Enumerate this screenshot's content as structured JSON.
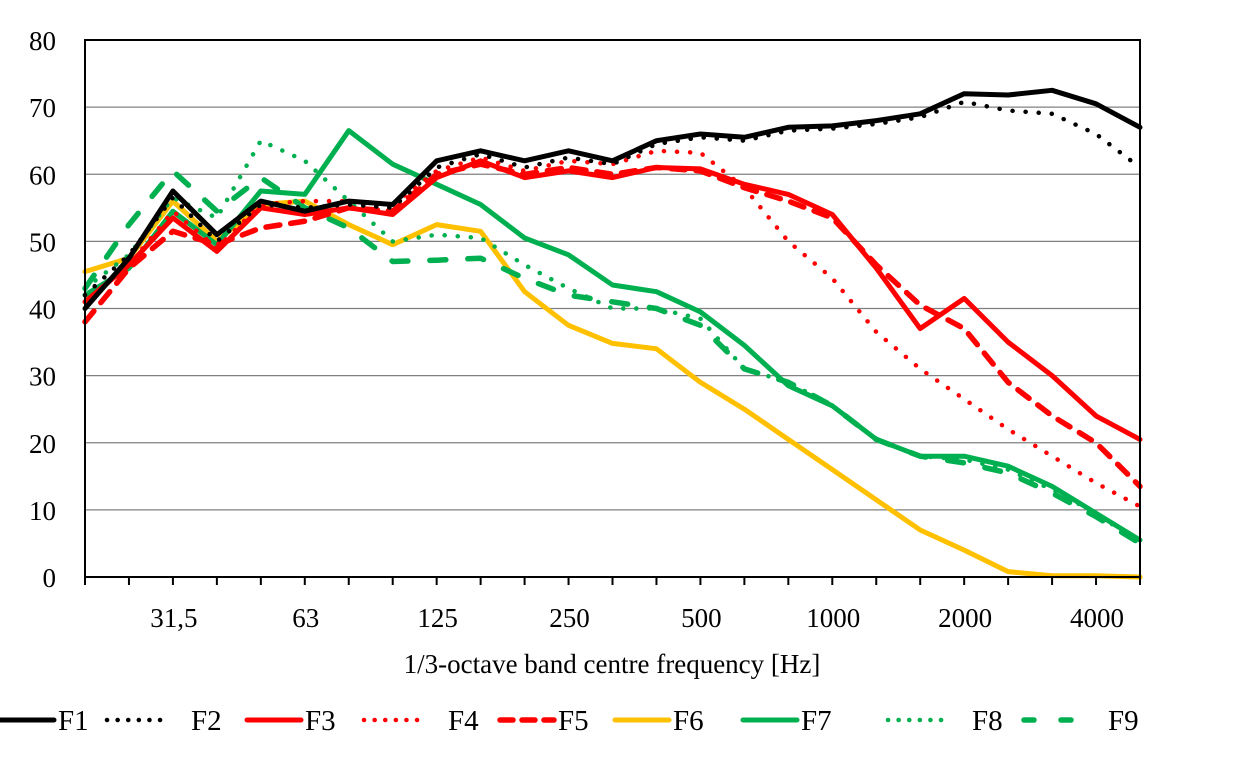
{
  "chart_data": {
    "type": "line",
    "title": "",
    "xlabel": "1/3-octave band centre frequency [Hz]",
    "ylabel": "",
    "ylim": [
      0,
      80
    ],
    "yticks": [
      0,
      10,
      20,
      30,
      40,
      50,
      60,
      70,
      80
    ],
    "ytick_labels": [
      "0",
      "10",
      "20",
      "30",
      "40",
      "50",
      "60",
      "70",
      "80"
    ],
    "grid": "horizontal",
    "legend_position": "bottom",
    "x": [
      "20",
      "25",
      "31,5",
      "40",
      "50",
      "63",
      "80",
      "100",
      "125",
      "160",
      "200",
      "250",
      "315",
      "400",
      "500",
      "630",
      "800",
      "1000",
      "1250",
      "1600",
      "2000",
      "2500",
      "3150",
      "4000",
      "5000"
    ],
    "xtick_labels": [
      {
        "index": 2,
        "label": "31,5"
      },
      {
        "index": 5,
        "label": "63"
      },
      {
        "index": 8,
        "label": "125"
      },
      {
        "index": 11,
        "label": "250"
      },
      {
        "index": 14,
        "label": "500"
      },
      {
        "index": 17,
        "label": "1000"
      },
      {
        "index": 20,
        "label": "2000"
      },
      {
        "index": 23,
        "label": "4000"
      }
    ],
    "series": [
      {
        "name": "F1",
        "color": "#000000",
        "style": "solid",
        "values": [
          40,
          47.5,
          57.5,
          51,
          56,
          54.5,
          56,
          55.5,
          62,
          63.5,
          62,
          63.5,
          62,
          65,
          66,
          65.5,
          67,
          67.2,
          68,
          69,
          72,
          71.8,
          72.5,
          70.5,
          67
        ]
      },
      {
        "name": "F2",
        "color": "#000000",
        "style": "dotted",
        "values": [
          42,
          48,
          56.5,
          50,
          55.5,
          55,
          55.5,
          55,
          61,
          63,
          61,
          62.5,
          61.5,
          64.5,
          65.5,
          65,
          66.5,
          66.8,
          67.5,
          68.5,
          70.8,
          69.5,
          69,
          66,
          61
        ]
      },
      {
        "name": "F3",
        "color": "#ff0000",
        "style": "solid",
        "values": [
          41,
          46.5,
          53.5,
          48.5,
          55,
          54,
          55,
          54,
          59.5,
          62,
          59.5,
          60.5,
          59.5,
          61,
          60.8,
          58.5,
          57,
          54,
          46,
          37,
          41.5,
          35,
          30,
          24,
          20.5
        ]
      },
      {
        "name": "F4",
        "color": "#ff0000",
        "style": "dotted",
        "values": [
          41,
          46.5,
          54.5,
          49,
          55.5,
          56,
          56,
          55.5,
          60.5,
          62.5,
          60.5,
          62,
          61.5,
          63.5,
          63.2,
          58,
          50,
          44.5,
          36.5,
          31,
          26.5,
          22,
          18,
          14,
          10.5
        ]
      },
      {
        "name": "F5",
        "color": "#ff0000",
        "style": "dashed",
        "values": [
          38,
          46,
          51.5,
          49.5,
          52,
          53,
          55,
          54.5,
          60,
          61.5,
          60,
          61,
          60,
          61,
          60.5,
          58,
          56,
          53.5,
          46.5,
          40.5,
          37,
          29,
          24,
          20,
          13.5
        ]
      },
      {
        "name": "F6",
        "color": "#ffc000",
        "style": "solid",
        "values": [
          45.5,
          47.5,
          56,
          50,
          55.5,
          56,
          52.5,
          49.5,
          52.5,
          51.5,
          42.5,
          37.5,
          34.8,
          34,
          29,
          25,
          20.5,
          16,
          11.5,
          7,
          4,
          0.8,
          0.2,
          0.2,
          0
        ]
      },
      {
        "name": "F7",
        "color": "#00b050",
        "style": "solid",
        "values": [
          42,
          46,
          54.5,
          49.5,
          57.5,
          57,
          66.5,
          61.5,
          58.5,
          55.5,
          50.5,
          48,
          43.5,
          42.5,
          39.5,
          34.5,
          28.5,
          25.5,
          20.5,
          18,
          18,
          16.5,
          13.5,
          9.5,
          5.5
        ]
      },
      {
        "name": "F8",
        "color": "#00b050",
        "style": "dotted",
        "values": [
          43,
          48,
          56.5,
          53.5,
          65,
          62,
          56,
          50,
          51,
          50.5,
          46.5,
          43,
          40,
          40,
          38.5,
          31,
          29,
          25.5,
          20.5,
          18,
          17.5,
          16,
          13,
          9.5,
          5
        ]
      },
      {
        "name": "F9",
        "color": "#00b050",
        "style": "longdash",
        "values": [
          43,
          52.5,
          60.5,
          54.5,
          59.5,
          55,
          52,
          47,
          47.2,
          47.5,
          44.5,
          42,
          41,
          40,
          37.5,
          31,
          29,
          25.5,
          20.5,
          18,
          17,
          15.5,
          12.5,
          9,
          5
        ]
      }
    ]
  }
}
